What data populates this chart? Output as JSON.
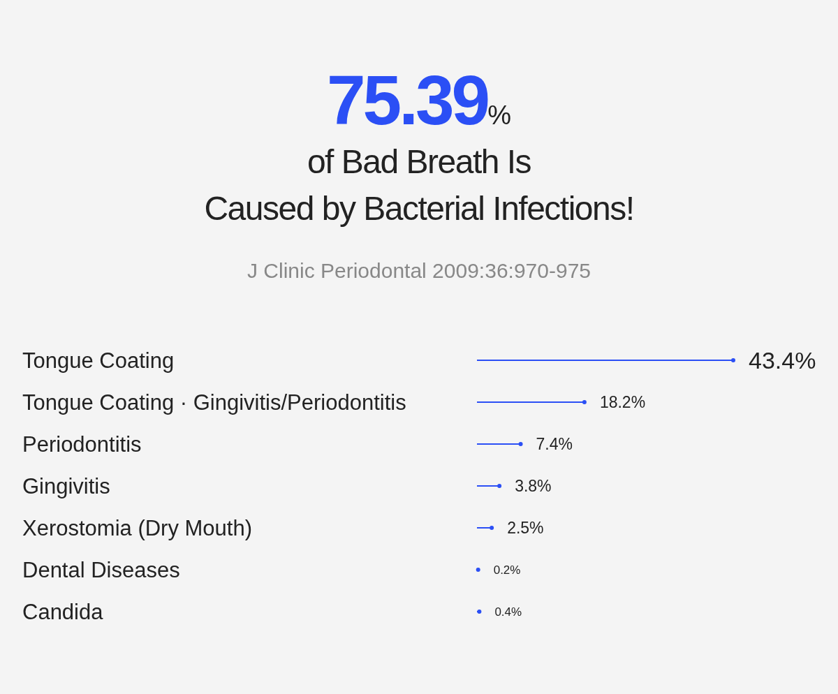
{
  "chart_data": {
    "type": "lollipop",
    "orientation": "horizontal",
    "title": "75.39%",
    "subtitle": "of Bad Breath Is\nCaused by Bacterial Infections!",
    "annotations": [
      "J Clinic Periodontal 2009:36:970-975"
    ],
    "categories": [
      "Tongue Coating",
      "Tongue Coating  · Gingivitis/Periodontitis",
      "Periodontitis",
      "Gingivitis",
      "Xerostomia (Dry Mouth)",
      "Dental Diseases",
      "Candida"
    ],
    "values": [
      43.4,
      18.2,
      7.4,
      3.8,
      2.5,
      0.2,
      0.4
    ],
    "value_labels": [
      "43.4%",
      "18.2%",
      "7.4%",
      "3.8%",
      "2.5%",
      "0.2%",
      "0.4%"
    ],
    "color": "#2b4ff5"
  }
}
